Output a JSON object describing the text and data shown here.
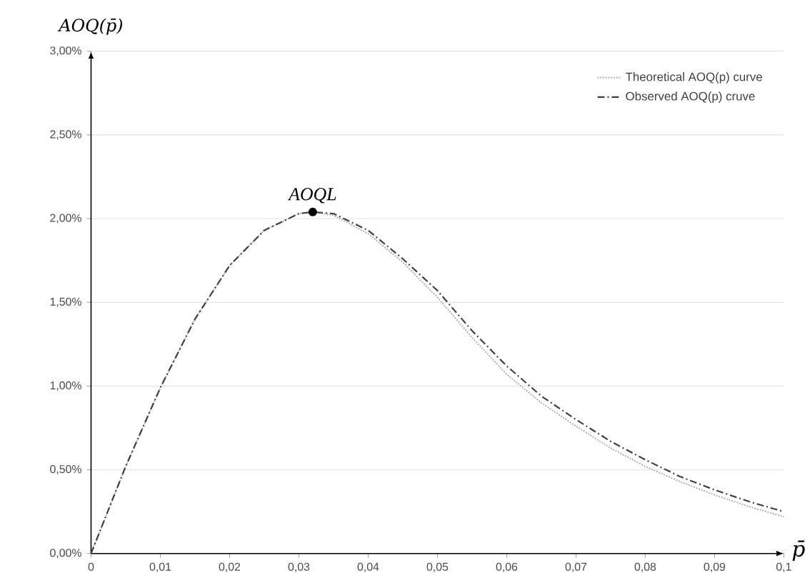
{
  "chart_data": {
    "type": "line",
    "xlabel": "p̄",
    "ylabel": "AOQ(p̄)",
    "xlim": [
      0,
      0.1
    ],
    "ylim": [
      0,
      3
    ],
    "xticks": [
      0,
      {
        "value": 0.01,
        "label": "0,01"
      },
      {
        "value": 0.02,
        "label": "0,02"
      },
      {
        "value": 0.03,
        "label": "0,03"
      },
      {
        "value": 0.04,
        "label": "0,04"
      },
      {
        "value": 0.05,
        "label": "0,05"
      },
      {
        "value": 0.06,
        "label": "0,06"
      },
      {
        "value": 0.07,
        "label": "0,07"
      },
      {
        "value": 0.08,
        "label": "0,08"
      },
      {
        "value": 0.09,
        "label": "0,09"
      },
      {
        "value": 0.1,
        "label": "0,1"
      }
    ],
    "yticks": [
      {
        "value": 0,
        "label": "0,00%"
      },
      {
        "value": 0.5,
        "label": "0,50%"
      },
      {
        "value": 1,
        "label": "1,00%"
      },
      {
        "value": 1.5,
        "label": "1,50%"
      },
      {
        "value": 2,
        "label": "2,00%"
      },
      {
        "value": 2.5,
        "label": "2,50%"
      },
      {
        "value": 3,
        "label": "3,00%"
      }
    ],
    "x": [
      0,
      0.005,
      0.01,
      0.015,
      0.02,
      0.025,
      0.03,
      0.032,
      0.035,
      0.04,
      0.045,
      0.05,
      0.055,
      0.06,
      0.065,
      0.07,
      0.075,
      0.08,
      0.085,
      0.09,
      0.095,
      0.1
    ],
    "series": [
      {
        "name": "Theoretical AOQ(p) curve",
        "color": "#a0a0a0",
        "line_style": "dotted",
        "values": [
          0,
          0.52,
          0.99,
          1.4,
          1.72,
          1.93,
          2.03,
          2.04,
          2.02,
          1.91,
          1.74,
          1.53,
          1.29,
          1.07,
          0.9,
          0.76,
          0.63,
          0.52,
          0.43,
          0.35,
          0.28,
          0.22
        ]
      },
      {
        "name": "Observed AOQ(p) cruve",
        "color": "#404040",
        "line_style": "dashdot",
        "values": [
          0,
          0.52,
          0.99,
          1.4,
          1.72,
          1.93,
          2.03,
          2.04,
          2.03,
          1.93,
          1.76,
          1.57,
          1.33,
          1.12,
          0.94,
          0.8,
          0.67,
          0.56,
          0.46,
          0.38,
          0.31,
          0.25
        ]
      }
    ],
    "annotations": [
      {
        "text": "AOQL",
        "x": 0.032,
        "y": 2.04
      }
    ],
    "grid": "y",
    "legend": "top right",
    "marker": "none"
  }
}
